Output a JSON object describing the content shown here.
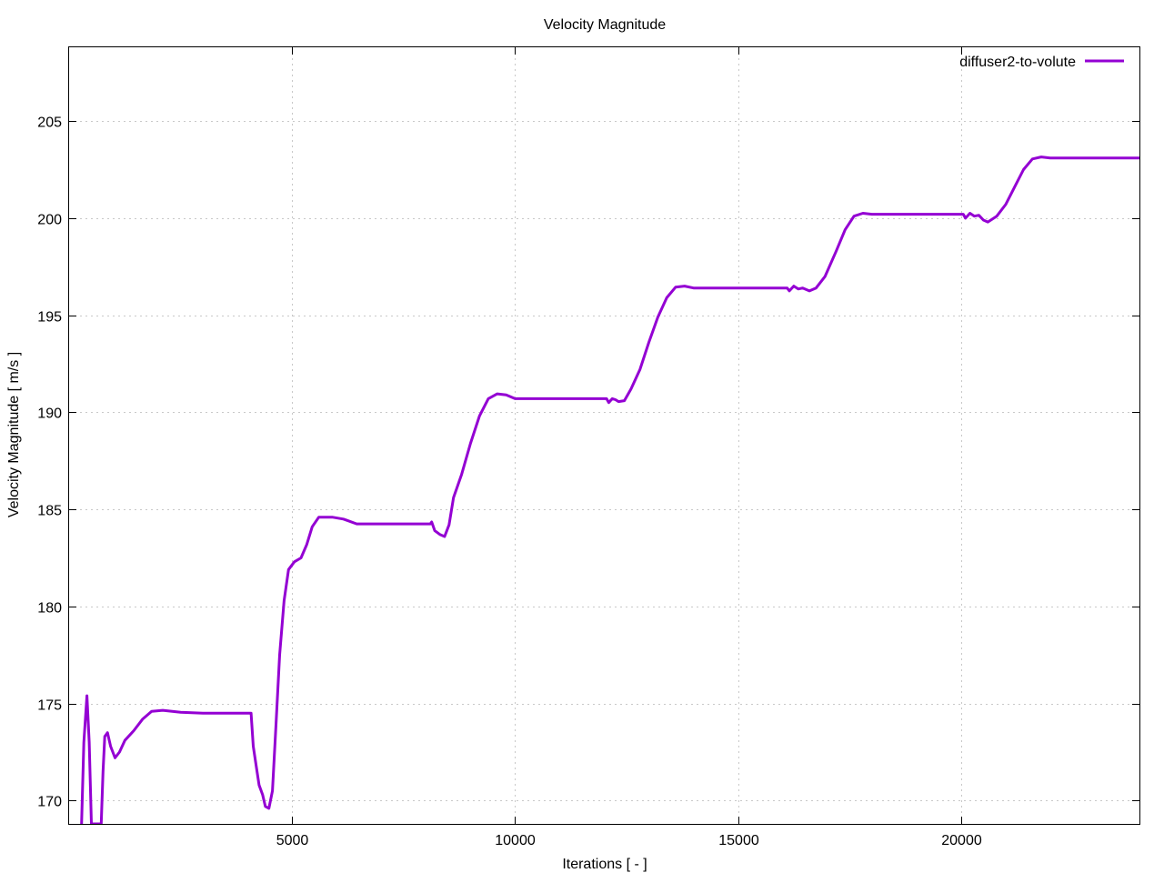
{
  "chart_data": {
    "type": "line",
    "title": "Velocity Magnitude",
    "xlabel": "Iterations [ - ]",
    "ylabel": "Velocity Magnitude [ m/s ]",
    "xlim": [
      0,
      24000
    ],
    "ylim": [
      168.8,
      208.8
    ],
    "xticks": [
      5000,
      10000,
      15000,
      20000
    ],
    "yticks": [
      170,
      175,
      180,
      185,
      190,
      195,
      200,
      205
    ],
    "grid": true,
    "legend_position": "top-right",
    "series": [
      {
        "name": "diffuser2-to-volute",
        "color": "#9400d3",
        "points": [
          [
            280,
            168.8
          ],
          [
            330,
            173.0
          ],
          [
            400,
            175.4
          ],
          [
            450,
            173.0
          ],
          [
            500,
            168.8
          ],
          [
            720,
            168.8
          ],
          [
            760,
            171.5
          ],
          [
            800,
            173.3
          ],
          [
            860,
            173.5
          ],
          [
            930,
            172.8
          ],
          [
            1030,
            172.2
          ],
          [
            1130,
            172.5
          ],
          [
            1250,
            173.1
          ],
          [
            1450,
            173.6
          ],
          [
            1650,
            174.2
          ],
          [
            1850,
            174.6
          ],
          [
            2100,
            174.65
          ],
          [
            2500,
            174.55
          ],
          [
            3000,
            174.5
          ],
          [
            3500,
            174.5
          ],
          [
            4080,
            174.5
          ],
          [
            4130,
            172.8
          ],
          [
            4200,
            171.7
          ],
          [
            4260,
            170.8
          ],
          [
            4340,
            170.3
          ],
          [
            4400,
            169.7
          ],
          [
            4480,
            169.6
          ],
          [
            4560,
            170.5
          ],
          [
            4640,
            174.0
          ],
          [
            4720,
            177.5
          ],
          [
            4820,
            180.3
          ],
          [
            4920,
            181.9
          ],
          [
            5050,
            182.3
          ],
          [
            5200,
            182.5
          ],
          [
            5330,
            183.2
          ],
          [
            5450,
            184.1
          ],
          [
            5600,
            184.6
          ],
          [
            5900,
            184.6
          ],
          [
            6150,
            184.5
          ],
          [
            6450,
            184.25
          ],
          [
            7200,
            184.25
          ],
          [
            8100,
            184.25
          ],
          [
            8130,
            184.35
          ],
          [
            8200,
            183.9
          ],
          [
            8320,
            183.7
          ],
          [
            8420,
            183.6
          ],
          [
            8520,
            184.2
          ],
          [
            8620,
            185.6
          ],
          [
            8800,
            186.8
          ],
          [
            9000,
            188.4
          ],
          [
            9200,
            189.8
          ],
          [
            9400,
            190.7
          ],
          [
            9600,
            190.95
          ],
          [
            9800,
            190.9
          ],
          [
            10000,
            190.7
          ],
          [
            11000,
            190.7
          ],
          [
            12050,
            190.7
          ],
          [
            12100,
            190.5
          ],
          [
            12180,
            190.7
          ],
          [
            12250,
            190.65
          ],
          [
            12320,
            190.55
          ],
          [
            12450,
            190.6
          ],
          [
            12600,
            191.2
          ],
          [
            12800,
            192.2
          ],
          [
            13000,
            193.6
          ],
          [
            13200,
            194.9
          ],
          [
            13400,
            195.9
          ],
          [
            13600,
            196.45
          ],
          [
            13800,
            196.5
          ],
          [
            14000,
            196.4
          ],
          [
            15000,
            196.4
          ],
          [
            16100,
            196.4
          ],
          [
            16150,
            196.25
          ],
          [
            16250,
            196.5
          ],
          [
            16350,
            196.35
          ],
          [
            16450,
            196.4
          ],
          [
            16600,
            196.25
          ],
          [
            16750,
            196.4
          ],
          [
            16950,
            197.0
          ],
          [
            17200,
            198.3
          ],
          [
            17400,
            199.4
          ],
          [
            17600,
            200.1
          ],
          [
            17800,
            200.25
          ],
          [
            18000,
            200.2
          ],
          [
            19000,
            200.2
          ],
          [
            20050,
            200.2
          ],
          [
            20100,
            200.0
          ],
          [
            20200,
            200.25
          ],
          [
            20300,
            200.1
          ],
          [
            20400,
            200.15
          ],
          [
            20500,
            199.9
          ],
          [
            20600,
            199.8
          ],
          [
            20800,
            200.1
          ],
          [
            21000,
            200.7
          ],
          [
            21200,
            201.6
          ],
          [
            21400,
            202.5
          ],
          [
            21600,
            203.05
          ],
          [
            21800,
            203.15
          ],
          [
            22000,
            203.1
          ],
          [
            23000,
            203.1
          ],
          [
            24000,
            203.1
          ]
        ]
      }
    ]
  }
}
